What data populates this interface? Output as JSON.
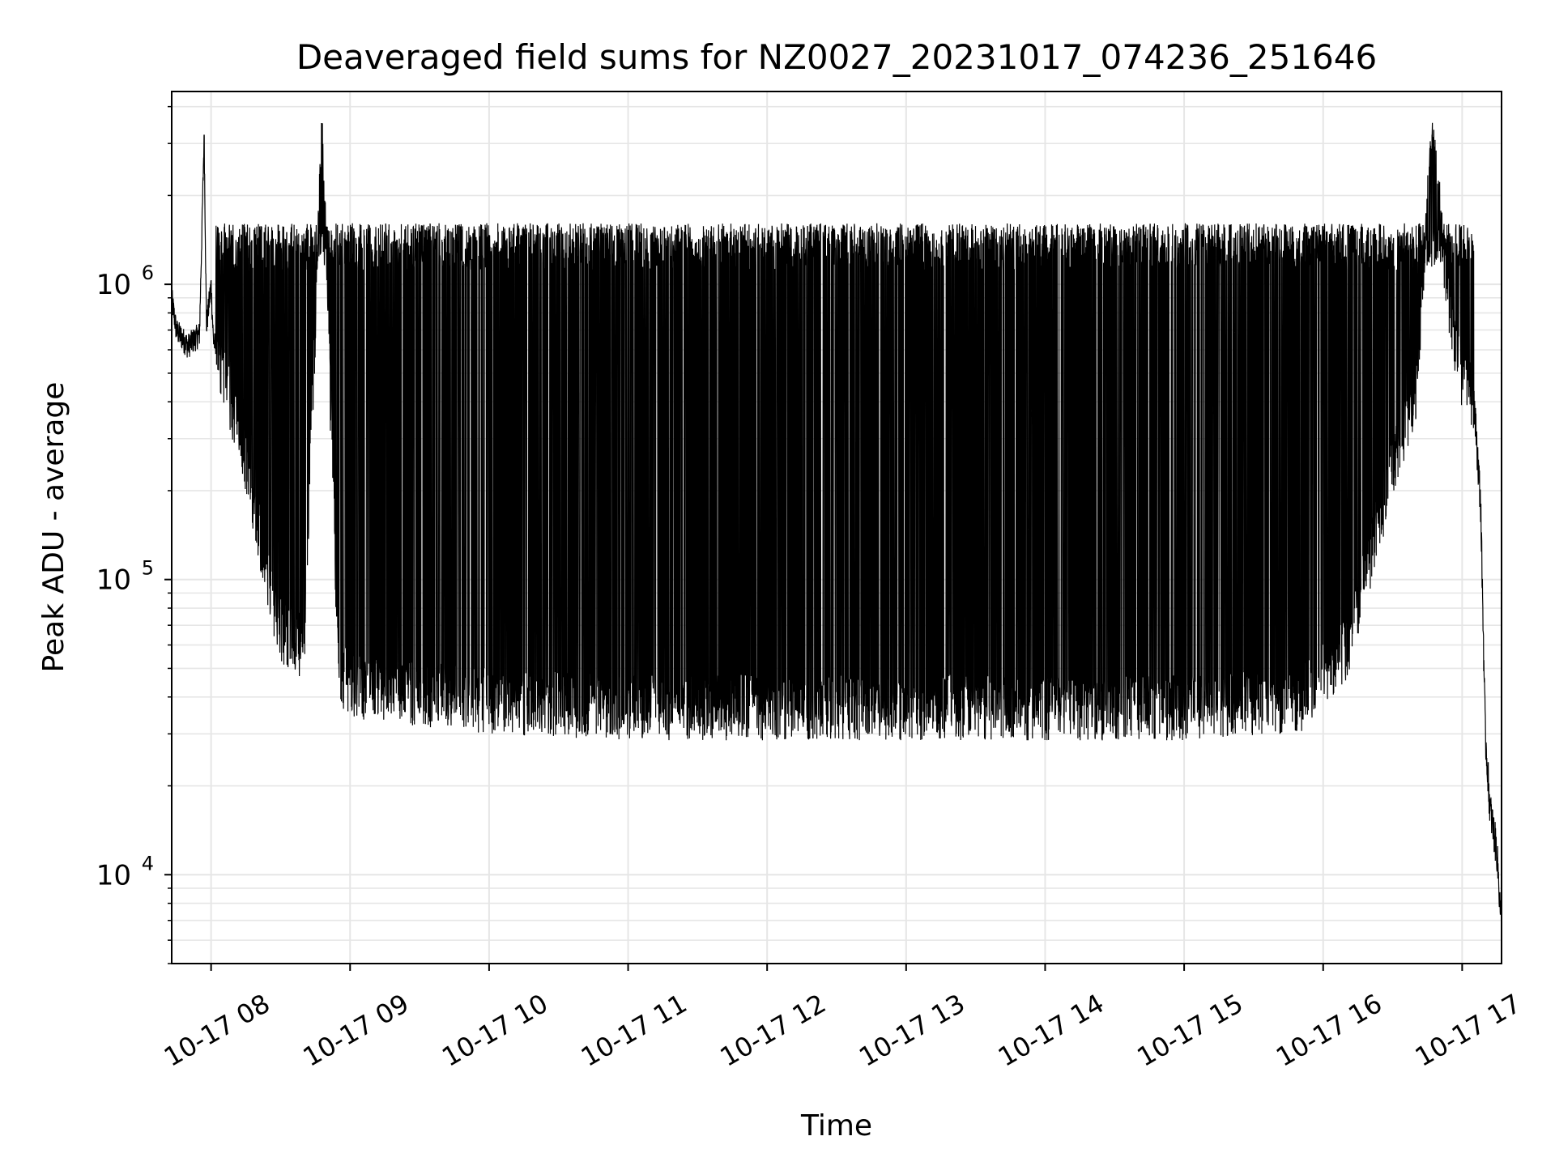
{
  "chart_data": {
    "type": "line",
    "title": "Deaveraged field sums for NZ0027_20231017_074236_251646",
    "xlabel": "Time",
    "ylabel": "Peak ADU - average",
    "y_scale": "log",
    "grid": true,
    "legend": "none",
    "line_color": "#000000",
    "xlim": [
      "10-17 07:43",
      "10-17 17:17"
    ],
    "ylim": [
      5000,
      4500000
    ],
    "x_ticks": [
      "10-17 08",
      "10-17 09",
      "10-17 10",
      "10-17 11",
      "10-17 12",
      "10-17 13",
      "10-17 14",
      "10-17 15",
      "10-17 16",
      "10-17 17"
    ],
    "y_ticks": [
      {
        "base": "10",
        "exp": "4",
        "value": 10000
      },
      {
        "base": "10",
        "exp": "5",
        "value": 100000
      },
      {
        "base": "10",
        "exp": "6",
        "value": 1000000
      }
    ],
    "series": [
      {
        "description_points": [
          [
            "10-17 07:43",
            900000
          ],
          [
            "10-17 07:45",
            700000
          ],
          [
            "10-17 07:50",
            620000
          ],
          [
            "10-17 07:55",
            680000
          ],
          [
            "10-17 07:57",
            3200000
          ],
          [
            "10-17 07:58",
            720000
          ],
          [
            "10-17 08:00",
            1000000
          ],
          [
            "10-17 08:01",
            650000
          ],
          [
            "10-17 08:05",
            500000
          ],
          [
            "10-17 08:10",
            380000
          ],
          [
            "10-17 08:15",
            250000
          ],
          [
            "10-17 08:20",
            160000
          ],
          [
            "10-17 08:25",
            100000
          ],
          [
            "10-17 08:30",
            70000
          ],
          [
            "10-17 08:40",
            60000
          ],
          [
            "10-17 08:48",
            3500000
          ],
          [
            "10-17 08:55",
            50000
          ],
          [
            "10-17 09:00",
            45000
          ],
          [
            "10-17 10:00",
            40000
          ],
          [
            "10-17 11:00",
            38000
          ],
          [
            "10-17 12:00",
            38000
          ],
          [
            "10-17 13:00",
            38000
          ],
          [
            "10-17 14:00",
            38000
          ],
          [
            "10-17 15:00",
            38000
          ],
          [
            "10-17 15:50",
            40000
          ],
          [
            "10-17 16:10",
            60000
          ],
          [
            "10-17 16:20",
            120000
          ],
          [
            "10-17 16:30",
            250000
          ],
          [
            "10-17 16:40",
            450000
          ],
          [
            "10-17 16:47",
            3200000
          ],
          [
            "10-17 16:55",
            800000
          ],
          [
            "10-17 17:00",
            500000
          ],
          [
            "10-17 17:05",
            420000
          ],
          [
            "10-17 17:08",
            180000
          ],
          [
            "10-17 17:10",
            30000
          ],
          [
            "10-17 17:12",
            17000
          ],
          [
            "10-17 17:15",
            12000
          ],
          [
            "10-17 17:17",
            6500
          ]
        ],
        "upper_envelope": 1400000,
        "lower_envelope_mid": 38000
      }
    ]
  }
}
